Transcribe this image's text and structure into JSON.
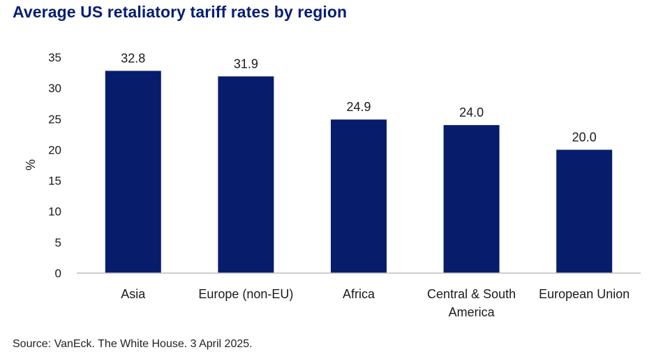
{
  "title": "Average US retaliatory tariff rates by region",
  "source": "Source: VanEck. The White House. 3 April 2025.",
  "colors": {
    "bar": "#071d6b",
    "title": "#071d73",
    "axis": "#bdbdbd"
  },
  "chart_data": {
    "type": "bar",
    "title": "Average US retaliatory tariff rates by region",
    "xlabel": "",
    "ylabel": "%",
    "ylim": [
      0,
      35
    ],
    "yticks": [
      0,
      5,
      10,
      15,
      20,
      25,
      30,
      35
    ],
    "grid": false,
    "legend": "none",
    "categories": [
      [
        "Asia"
      ],
      [
        "Europe (non-EU)"
      ],
      [
        "Africa"
      ],
      [
        "Central & South",
        "America"
      ],
      [
        "European Union"
      ]
    ],
    "values": [
      32.8,
      31.9,
      24.9,
      24.0,
      20.0
    ],
    "data_labels": [
      "32.8",
      "31.9",
      "24.9",
      "24.0",
      "20.0"
    ]
  }
}
